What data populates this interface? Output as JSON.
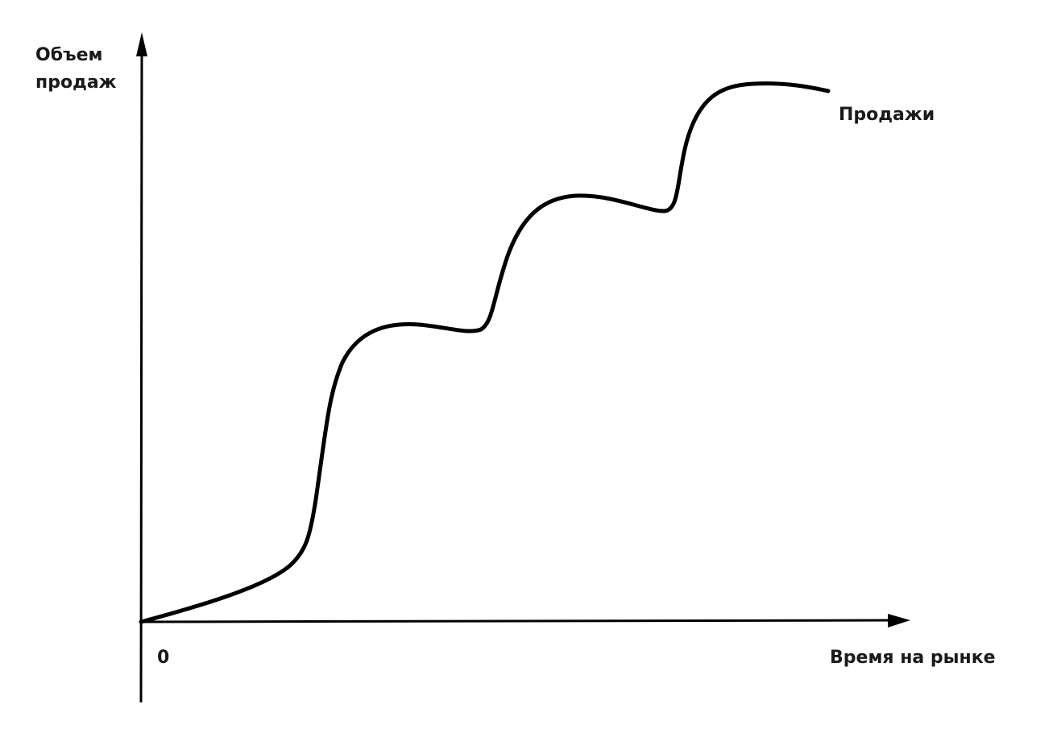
{
  "diagram": {
    "y_axis_label_line1": "Объем",
    "y_axis_label_line2": "продаж",
    "x_axis_label": "Время на рынке",
    "origin_label": "0",
    "curve_label": "Продажи",
    "line_color": "#000000",
    "text_color": "#1a1a1a"
  }
}
